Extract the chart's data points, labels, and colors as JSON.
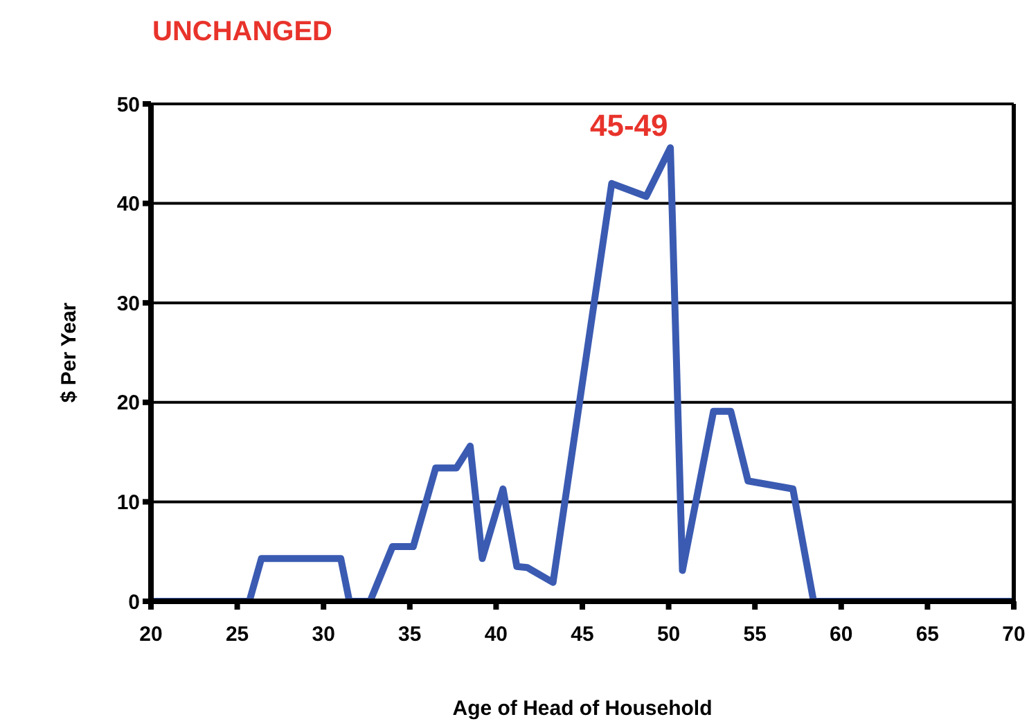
{
  "chart_data": {
    "type": "line",
    "title": "UNCHANGED",
    "xlabel": "Age of Head of Household",
    "ylabel": "$ Per Year",
    "series": [
      {
        "color": "#3b5bb2",
        "x": [
          20,
          25.7,
          26.4,
          31,
          31.5,
          32.7,
          34,
          35.2,
          36.5,
          37.7,
          38.5,
          39.2,
          40.4,
          41.2,
          41.8,
          43.3,
          46.7,
          48.7,
          50.1,
          50.8,
          52.6,
          53.6,
          54.6,
          57.2,
          58.4,
          70
        ],
        "values": [
          0,
          0,
          4.3,
          4.3,
          0,
          0,
          5.5,
          5.5,
          13.4,
          13.4,
          15.6,
          4.3,
          11.3,
          3.5,
          3.4,
          1.9,
          42,
          40.7,
          45.6,
          3.1,
          19.1,
          19.1,
          12.1,
          11.3,
          0,
          0
        ]
      }
    ],
    "xlim": [
      20,
      70
    ],
    "xticks": [
      20,
      25,
      30,
      35,
      40,
      45,
      50,
      55,
      60,
      65,
      70
    ],
    "ylim": [
      0,
      50
    ],
    "yticks": [
      0,
      10,
      20,
      30,
      40,
      50
    ],
    "grid": "y",
    "legend": false,
    "marker": "none",
    "line_style": "solid",
    "annotations": [
      "45-49"
    ]
  }
}
